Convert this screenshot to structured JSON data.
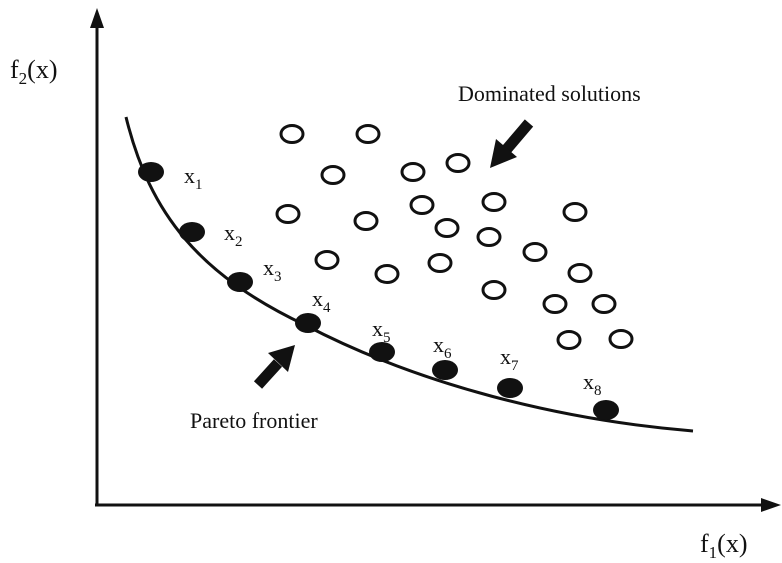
{
  "axes": {
    "y_label_main": "f",
    "y_label_sub": "2",
    "y_label_tail": "(x)",
    "x_label_main": "f",
    "x_label_sub": "1",
    "x_label_tail": "(x)"
  },
  "annotations": {
    "dominated": "Dominated solutions",
    "pareto": "Pareto frontier"
  },
  "pareto_points": [
    {
      "main": "x",
      "sub": "1"
    },
    {
      "main": "x",
      "sub": "2"
    },
    {
      "main": "x",
      "sub": "3"
    },
    {
      "main": "x",
      "sub": "4"
    },
    {
      "main": "x",
      "sub": "5"
    },
    {
      "main": "x",
      "sub": "6"
    },
    {
      "main": "x",
      "sub": "7"
    },
    {
      "main": "x",
      "sub": "8"
    }
  ],
  "colors": {
    "ink": "#111111",
    "background": "#ffffff"
  }
}
